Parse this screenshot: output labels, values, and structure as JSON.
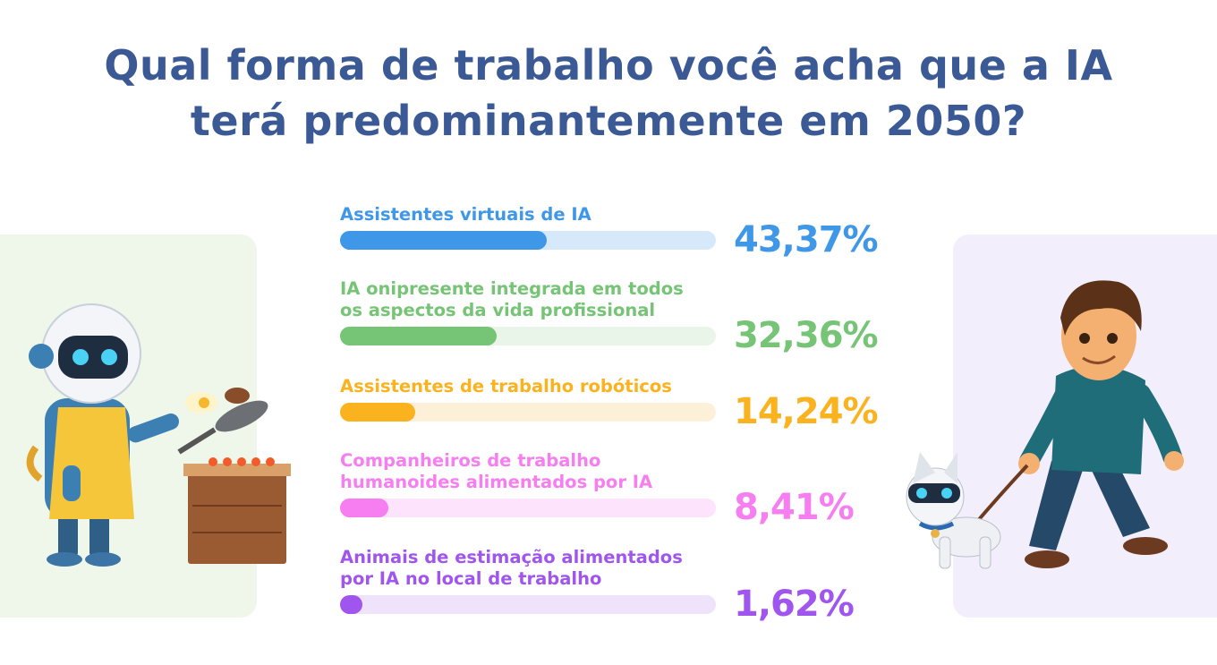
{
  "title": {
    "line1": "Qual forma de trabalho você acha que a IA",
    "line2": "terá predominantemente em 2050?"
  },
  "chart_data": {
    "type": "bar",
    "orientation": "horizontal",
    "title": "Qual forma de trabalho você acha que a IA terá predominantemente em 2050?",
    "unit": "%",
    "items": [
      {
        "label_lines": [
          "Assistentes virtuais de IA"
        ],
        "value": 43.37,
        "display": "43,37%",
        "color": "#3f97e8",
        "track": "#d6e9fb"
      },
      {
        "label_lines": [
          "IA onipresente integrada em todos",
          "os aspectos da vida profissional"
        ],
        "value": 32.36,
        "display": "32,36%",
        "color": "#76c475",
        "track": "#eaf5ea"
      },
      {
        "label_lines": [
          "Assistentes de trabalho robóticos"
        ],
        "value": 14.24,
        "display": "14,24%",
        "color": "#fbb21f",
        "track": "#fdf0d9"
      },
      {
        "label_lines": [
          "Companheiros de trabalho",
          "humanoides alimentados por IA"
        ],
        "value": 8.41,
        "display": "8,41%",
        "color": "#f77ef0",
        "track": "#fde3fb"
      },
      {
        "label_lines": [
          "Animais de estimação alimentados",
          "por IA no local de trabalho"
        ],
        "value": 1.62,
        "display": "1,62%",
        "color": "#a056ee",
        "track": "#efe3fc"
      }
    ]
  },
  "illustrations": {
    "left": "robot-cooking-icon",
    "right": "man-walking-robot-dog-icon"
  }
}
